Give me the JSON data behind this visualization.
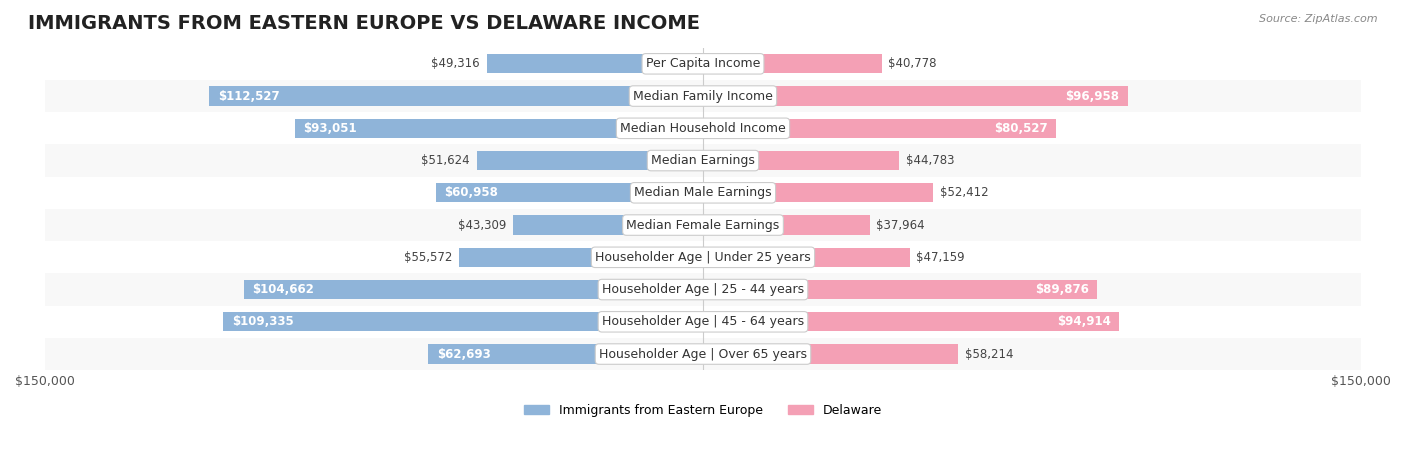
{
  "title": "IMMIGRANTS FROM EASTERN EUROPE VS DELAWARE INCOME",
  "source": "Source: ZipAtlas.com",
  "categories": [
    "Per Capita Income",
    "Median Family Income",
    "Median Household Income",
    "Median Earnings",
    "Median Male Earnings",
    "Median Female Earnings",
    "Householder Age | Under 25 years",
    "Householder Age | 25 - 44 years",
    "Householder Age | 45 - 64 years",
    "Householder Age | Over 65 years"
  ],
  "left_values": [
    49316,
    112527,
    93051,
    51624,
    60958,
    43309,
    55572,
    104662,
    109335,
    62693
  ],
  "right_values": [
    40778,
    96958,
    80527,
    44783,
    52412,
    37964,
    47159,
    89876,
    94914,
    58214
  ],
  "left_color": "#8fb4d9",
  "right_color": "#f4a0b5",
  "left_color_legend": "#6fa8d4",
  "right_color_legend": "#f080a0",
  "bar_bg_color": "#f0f0f0",
  "row_bg_color_alt": "#f9f9f9",
  "row_bg_color": "#ffffff",
  "max_value": 150000,
  "left_label": "Immigrants from Eastern Europe",
  "right_label": "Delaware",
  "title_fontsize": 14,
  "label_fontsize": 9,
  "value_fontsize": 8.5,
  "axis_fontsize": 9
}
